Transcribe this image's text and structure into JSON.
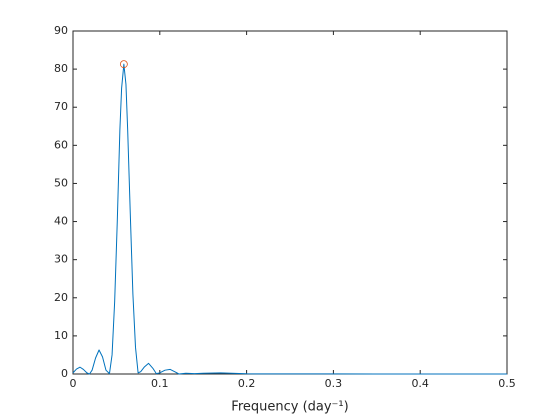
{
  "chart_data": {
    "type": "line",
    "xlabel": "Frequency  (day⁻¹)",
    "xlim": [
      0,
      0.5
    ],
    "xticks": [
      0,
      0.1,
      0.2,
      0.3,
      0.4,
      0.5
    ],
    "ylim": [
      0,
      90
    ],
    "yticks": [
      0,
      10,
      20,
      30,
      40,
      50,
      60,
      70,
      80,
      90
    ],
    "grid": false,
    "series": [
      {
        "color": "#0072bd",
        "marker": "none",
        "x": [
          0,
          0.004,
          0.008,
          0.012,
          0.016,
          0.019,
          0.022,
          0.026,
          0.03,
          0.034,
          0.038,
          0.042,
          0.045,
          0.048,
          0.051,
          0.054,
          0.056,
          0.0586,
          0.061,
          0.063,
          0.066,
          0.069,
          0.072,
          0.075,
          0.078,
          0.082,
          0.087,
          0.092,
          0.096,
          0.1,
          0.106,
          0.112,
          0.118,
          0.122,
          0.13,
          0.14,
          0.15,
          0.17,
          0.2,
          0.25,
          0.3,
          0.35,
          0.4,
          0.45,
          0.5
        ],
        "values": [
          0.3,
          1.3,
          1.8,
          1.2,
          0.3,
          0,
          1.0,
          4.2,
          6.3,
          4.5,
          1.0,
          0.1,
          5,
          19,
          40,
          64,
          75,
          81.3,
          76,
          64,
          42,
          21,
          7,
          0.3,
          0.6,
          1.8,
          2.8,
          1.5,
          0.1,
          0.3,
          1.0,
          1.2,
          0.5,
          0,
          0.2,
          0.1,
          0.2,
          0.3,
          0.05,
          0.02,
          0.02,
          0.01,
          0.01,
          0.01,
          0.01
        ]
      },
      {
        "color": "#d95319",
        "marker": "circle",
        "x": [
          0.0586
        ],
        "values": [
          81.3
        ]
      }
    ]
  }
}
